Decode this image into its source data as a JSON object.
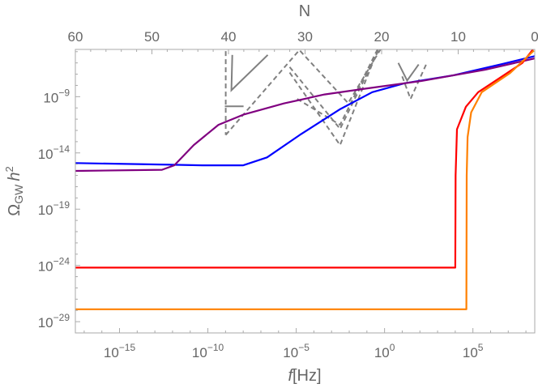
{
  "chart_data": {
    "type": "line",
    "title": "",
    "xlabel": "f[Hz]",
    "xlabel_italic_part": "f",
    "xlabel_unit": "[Hz]",
    "ylabel": "Ω_GW h^2",
    "ylabel_parts": {
      "symbol": "Ω",
      "sub": "GW",
      "h": "h",
      "sup": "2"
    },
    "top_axis_label": "N",
    "x_scale": "log",
    "y_scale": "log",
    "xlim_log10": [
      -17.5,
      8.5
    ],
    "ylim_log10": [
      -30,
      -4.8
    ],
    "top_axis_range": [
      60,
      0
    ],
    "x_ticks": [
      {
        "log": -15,
        "label": "10",
        "exp": "−15"
      },
      {
        "log": -10,
        "label": "10",
        "exp": "−10"
      },
      {
        "log": -5,
        "label": "10",
        "exp": "−5"
      },
      {
        "log": 0,
        "label": "10",
        "exp": "0"
      },
      {
        "log": 5,
        "label": "10",
        "exp": "5"
      }
    ],
    "y_ticks": [
      {
        "log": -9,
        "label": "10",
        "exp": "−9"
      },
      {
        "log": -14,
        "label": "10",
        "exp": "−14"
      },
      {
        "log": -19,
        "label": "10",
        "exp": "−19"
      },
      {
        "log": -24,
        "label": "10",
        "exp": "−24"
      },
      {
        "log": -29,
        "label": "10",
        "exp": "−29"
      }
    ],
    "top_ticks": [
      "60",
      "50",
      "40",
      "30",
      "20",
      "10",
      "0"
    ],
    "grid": false,
    "legend": "none",
    "series": [
      {
        "color": "#0000ff",
        "log10_points": [
          [
            -17.5,
            -14.9
          ],
          [
            -12,
            -15.05
          ],
          [
            -10.3,
            -15.1
          ],
          [
            -8,
            -15.1
          ],
          [
            -6.65,
            -14.4
          ],
          [
            -4.8,
            -12.4
          ],
          [
            -2.5,
            -10.1
          ],
          [
            -0.7,
            -8.6
          ],
          [
            1.15,
            -7.8
          ],
          [
            3.9,
            -7.1
          ],
          [
            6.65,
            -6.1
          ],
          [
            8.5,
            -5.4
          ]
        ]
      },
      {
        "color": "#800080",
        "log10_points": [
          [
            -17.5,
            -15.6
          ],
          [
            -12.6,
            -15.5
          ],
          [
            -11.9,
            -15.1
          ],
          [
            -10.8,
            -13.3
          ],
          [
            -9.4,
            -11.5
          ],
          [
            -8,
            -10.6
          ],
          [
            -5.7,
            -9.6
          ],
          [
            -3.4,
            -8.8
          ],
          [
            -1.15,
            -8.3
          ],
          [
            2.1,
            -7.6
          ],
          [
            5.7,
            -6.6
          ],
          [
            8.5,
            -5.6
          ]
        ]
      },
      {
        "color": "#ff0000",
        "log10_points": [
          [
            -17.5,
            -24.2
          ],
          [
            4.0,
            -24.2
          ],
          [
            4.02,
            -16
          ],
          [
            4.1,
            -11.9
          ],
          [
            4.6,
            -9.9
          ],
          [
            5.3,
            -8.6
          ],
          [
            6.65,
            -7.2
          ],
          [
            7.8,
            -6.0
          ],
          [
            8.4,
            -4.8
          ]
        ]
      },
      {
        "color": "#ff8000",
        "log10_points": [
          [
            -17.5,
            -27.9
          ],
          [
            4.63,
            -27.9
          ],
          [
            4.65,
            -16
          ],
          [
            4.7,
            -12.6
          ],
          [
            4.9,
            -10.4
          ],
          [
            5.5,
            -8.6
          ],
          [
            7.1,
            -6.9
          ],
          [
            8.45,
            -4.9
          ]
        ]
      }
    ],
    "sensitivity_curves": [
      {
        "style": "solid",
        "color": "#808080",
        "log10_points": [
          [
            -8.62,
            -5.29
          ],
          [
            -8.67,
            -8.43
          ],
          [
            -6.61,
            -5.29
          ]
        ]
      },
      {
        "style": "solid",
        "color": "#808080",
        "log10_points": [
          [
            -9.04,
            -9.86
          ],
          [
            -7.98,
            -9.86
          ]
        ]
      },
      {
        "style": "dashed",
        "color": "#808080",
        "log10_points": [
          [
            -8.99,
            -4.95
          ],
          [
            -8.99,
            -12.4
          ]
        ]
      },
      {
        "style": "dashed",
        "color": "#808080",
        "log10_points": [
          [
            -8.99,
            -12.4
          ],
          [
            -4.82,
            -4.86
          ],
          [
            -2.06,
            -9.57
          ],
          [
            -0.23,
            -4.8
          ]
        ]
      },
      {
        "style": "dashed",
        "color": "#808080",
        "log10_points": [
          [
            -5.37,
            -6.86
          ],
          [
            -2.52,
            -13.3
          ],
          [
            -0.37,
            -4.8
          ]
        ]
      },
      {
        "style": "dashed",
        "color": "#808080",
        "log10_points": [
          [
            -5.37,
            -6.36
          ],
          [
            -2.52,
            -11.86
          ],
          [
            -0.32,
            -4.8
          ]
        ]
      },
      {
        "style": "dashed",
        "color": "#808080",
        "log10_points": [
          [
            -4.95,
            -9.2
          ],
          [
            -2.52,
            -11.5
          ],
          [
            -0.4,
            -4.8
          ]
        ]
      },
      {
        "style": "solid",
        "color": "#808080",
        "log10_points": [
          [
            0.78,
            -6.0
          ],
          [
            1.28,
            -7.57
          ],
          [
            1.93,
            -6.14
          ]
        ]
      },
      {
        "style": "dashed",
        "color": "#808080",
        "log10_points": [
          [
            1.0,
            -7.2
          ],
          [
            1.47,
            -9.2
          ],
          [
            2.39,
            -6.0
          ]
        ]
      }
    ]
  }
}
